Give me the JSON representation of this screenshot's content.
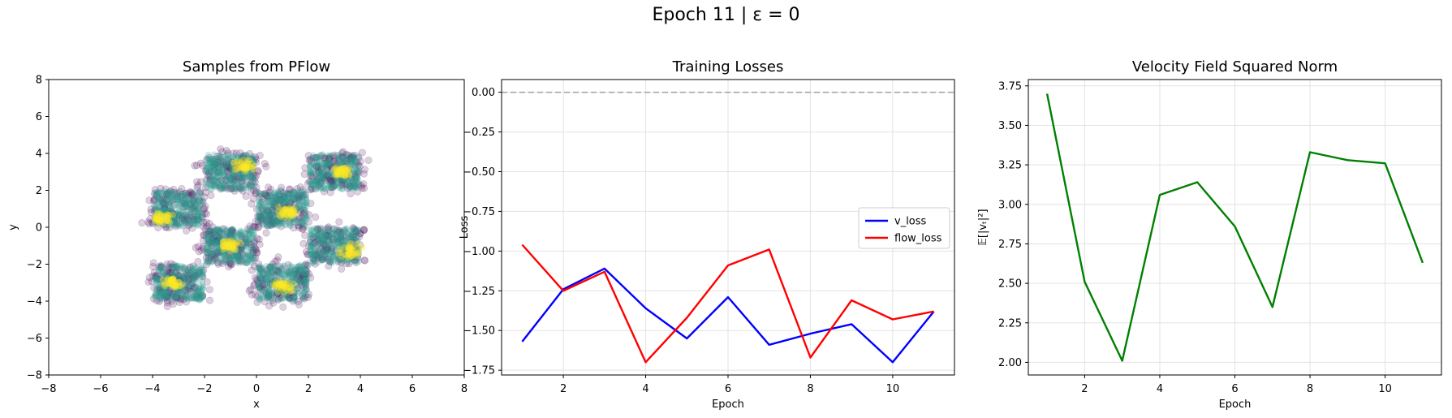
{
  "figure": {
    "suptitle": "Epoch 11 | ε = 0"
  },
  "chart_data": [
    {
      "type": "scatter",
      "title": "Samples from PFlow",
      "xlabel": "x",
      "ylabel": "y",
      "xlim": [
        -8,
        8
      ],
      "ylim": [
        -8,
        8
      ],
      "xticks": [
        -8,
        -6,
        -4,
        -2,
        0,
        2,
        4,
        6,
        8
      ],
      "yticks": [
        -8,
        -6,
        -4,
        -2,
        0,
        2,
        4,
        6,
        8
      ],
      "grid": false,
      "clusters": [
        {
          "x": [
            -2,
            0
          ],
          "y": [
            2,
            4
          ],
          "hot": [
            -0.5,
            3.3
          ]
        },
        {
          "x": [
            2,
            4
          ],
          "y": [
            2,
            4
          ],
          "hot": [
            3.3,
            3.0
          ]
        },
        {
          "x": [
            -4,
            -2
          ],
          "y": [
            0,
            2
          ],
          "hot": [
            -3.6,
            0.5
          ]
        },
        {
          "x": [
            0,
            2
          ],
          "y": [
            0,
            2
          ],
          "hot": [
            1.2,
            0.8
          ]
        },
        {
          "x": [
            -2,
            0
          ],
          "y": [
            -2,
            0
          ],
          "hot": [
            -1.0,
            -1.0
          ]
        },
        {
          "x": [
            2,
            4
          ],
          "y": [
            -2,
            0
          ],
          "hot": [
            3.6,
            -1.3
          ]
        },
        {
          "x": [
            -4,
            -2
          ],
          "y": [
            -4,
            -2
          ],
          "hot": [
            -3.2,
            -3.0
          ]
        },
        {
          "x": [
            0,
            2
          ],
          "y": [
            -4,
            -2
          ],
          "hot": [
            1.0,
            -3.2
          ]
        }
      ],
      "colors": {
        "sparse": "#440154",
        "mid": "#2a9d8f",
        "dense": "#fde725"
      }
    },
    {
      "type": "line",
      "title": "Training Losses",
      "xlabel": "Epoch",
      "ylabel": "Loss",
      "x": [
        1,
        2,
        3,
        4,
        5,
        6,
        7,
        8,
        9,
        10,
        11
      ],
      "xlim": [
        0.5,
        11.5
      ],
      "ylim": [
        -1.78,
        0.08
      ],
      "xticks": [
        2,
        4,
        6,
        8,
        10
      ],
      "yticks": [
        0.0,
        -0.25,
        -0.5,
        -0.75,
        -1.0,
        -1.25,
        -1.5,
        -1.75
      ],
      "ytick_labels": [
        "0.00",
        "−0.25",
        "−0.50",
        "−0.75",
        "−1.00",
        "−1.25",
        "−1.50",
        "−1.75"
      ],
      "grid": true,
      "hline": {
        "y": 0,
        "color": "#999999",
        "style": "dashed"
      },
      "legend": "center-right",
      "series": [
        {
          "name": "v_loss",
          "color": "#0000ff",
          "values": [
            -1.57,
            -1.24,
            -1.11,
            -1.36,
            -1.55,
            -1.29,
            -1.59,
            -1.52,
            -1.46,
            -1.7,
            -1.38
          ]
        },
        {
          "name": "flow_loss",
          "color": "#ff0000",
          "values": [
            -0.96,
            -1.25,
            -1.13,
            -1.7,
            -1.42,
            -1.09,
            -0.99,
            -1.67,
            -1.31,
            -1.43,
            -1.38
          ]
        }
      ]
    },
    {
      "type": "line",
      "title": "Velocity Field Squared Norm",
      "xlabel": "Epoch",
      "ylabel": "𝔼[|vₜ|²]",
      "x": [
        1,
        2,
        3,
        4,
        5,
        6,
        7,
        8,
        9,
        10,
        11
      ],
      "xlim": [
        0.5,
        11.5
      ],
      "ylim": [
        1.92,
        3.79
      ],
      "xticks": [
        2,
        4,
        6,
        8,
        10
      ],
      "yticks": [
        2.0,
        2.25,
        2.5,
        2.75,
        3.0,
        3.25,
        3.5,
        3.75
      ],
      "ytick_labels": [
        "2.00",
        "2.25",
        "2.50",
        "2.75",
        "3.00",
        "3.25",
        "3.50",
        "3.75"
      ],
      "grid": true,
      "series": [
        {
          "name": "",
          "color": "#008000",
          "values": [
            3.7,
            2.51,
            2.01,
            3.06,
            3.14,
            2.86,
            2.35,
            3.33,
            3.28,
            3.26,
            2.63
          ]
        }
      ]
    }
  ]
}
